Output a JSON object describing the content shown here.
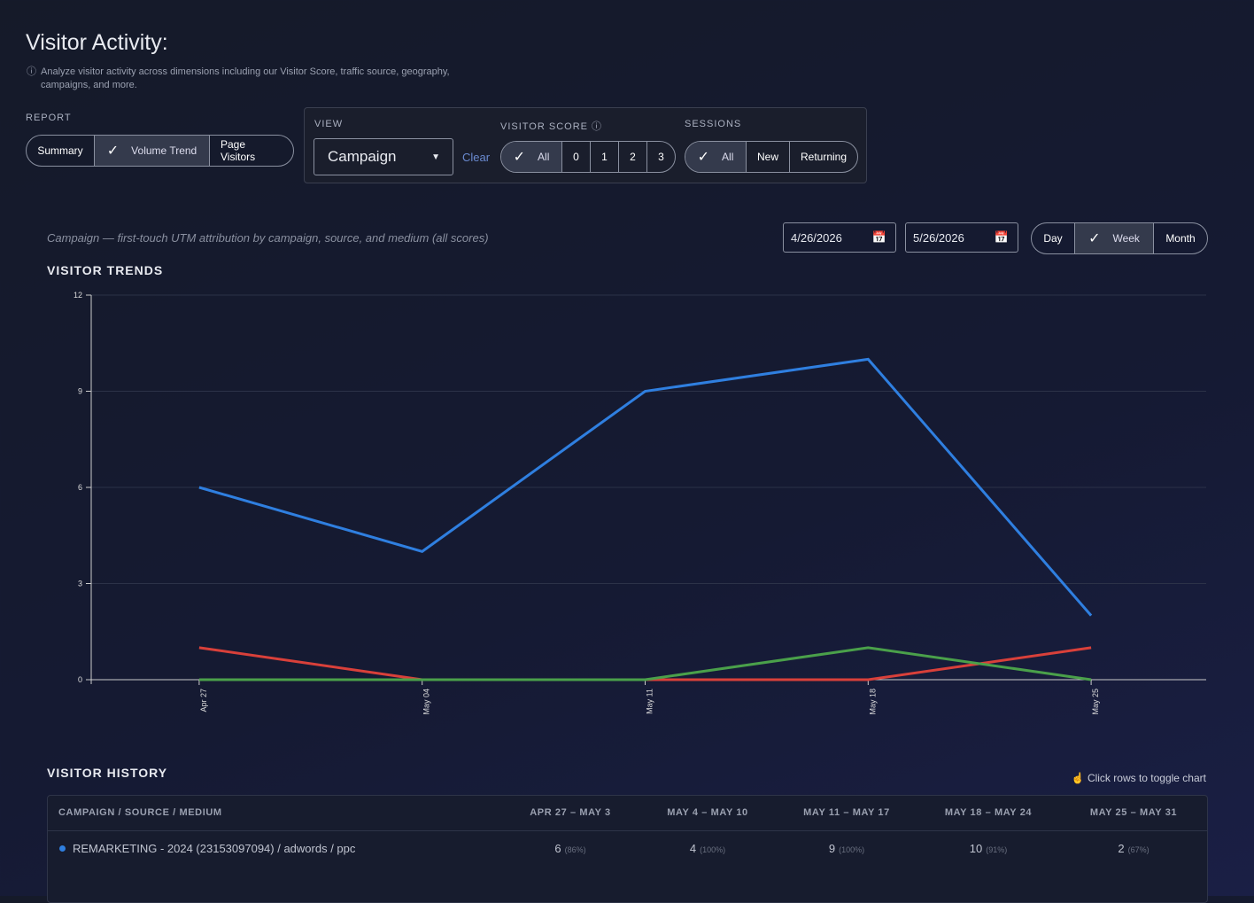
{
  "header": {
    "title": "Visitor Activity:",
    "description": "Analyze visitor activity across dimensions including our Visitor Score, traffic source, geography, campaigns, and more."
  },
  "report": {
    "label": "REPORT",
    "options": [
      "Summary",
      "Volume Trend",
      "Page Visitors"
    ]
  },
  "view": {
    "label": "VIEW",
    "value": "Campaign",
    "clear": "Clear"
  },
  "visitor_score": {
    "label": "VISITOR SCORE",
    "options": [
      "All",
      "0",
      "1",
      "2",
      "3"
    ]
  },
  "sessions": {
    "label": "SESSIONS",
    "options": [
      "All",
      "New",
      "Returning"
    ]
  },
  "caption": "Campaign — first-touch UTM attribution by campaign, source, and medium (all scores)",
  "dates": {
    "start": "4/26/2026",
    "end": "5/26/2026"
  },
  "granularity": {
    "options": [
      "Day",
      "Week",
      "Month"
    ]
  },
  "chart_data": {
    "type": "line",
    "title": "VISITOR TRENDS",
    "categories": [
      "Apr 27",
      "May 04",
      "May 11",
      "May 18",
      "May 25"
    ],
    "ylim": [
      0,
      12
    ],
    "yticks": [
      0,
      3,
      6,
      9,
      12
    ],
    "grid": true,
    "series": [
      {
        "color": "#2f7fe0",
        "values": [
          6,
          4,
          9,
          10,
          2
        ]
      },
      {
        "color": "#d9403a",
        "values": [
          1,
          0,
          0,
          0,
          1
        ]
      },
      {
        "color": "#4aa04a",
        "values": [
          0,
          0,
          0,
          1,
          0
        ]
      }
    ]
  },
  "history": {
    "title": "VISITOR HISTORY",
    "hint": "Click rows to toggle chart",
    "columns": [
      "CAMPAIGN / SOURCE / MEDIUM",
      "APR 27 – MAY 3",
      "MAY 4 – MAY 10",
      "MAY 11 – MAY 17",
      "MAY 18 – MAY 24",
      "MAY 25 – MAY 31"
    ],
    "rows": [
      {
        "name": "REMARKETING - 2024 (23153097094) / adwords / ppc",
        "cells": [
          {
            "value": 6,
            "pct": "(86%)"
          },
          {
            "value": 4,
            "pct": "(100%)"
          },
          {
            "value": 9,
            "pct": "(100%)"
          },
          {
            "value": 10,
            "pct": "(91%)"
          },
          {
            "value": 2,
            "pct": "(67%)"
          }
        ]
      }
    ]
  }
}
